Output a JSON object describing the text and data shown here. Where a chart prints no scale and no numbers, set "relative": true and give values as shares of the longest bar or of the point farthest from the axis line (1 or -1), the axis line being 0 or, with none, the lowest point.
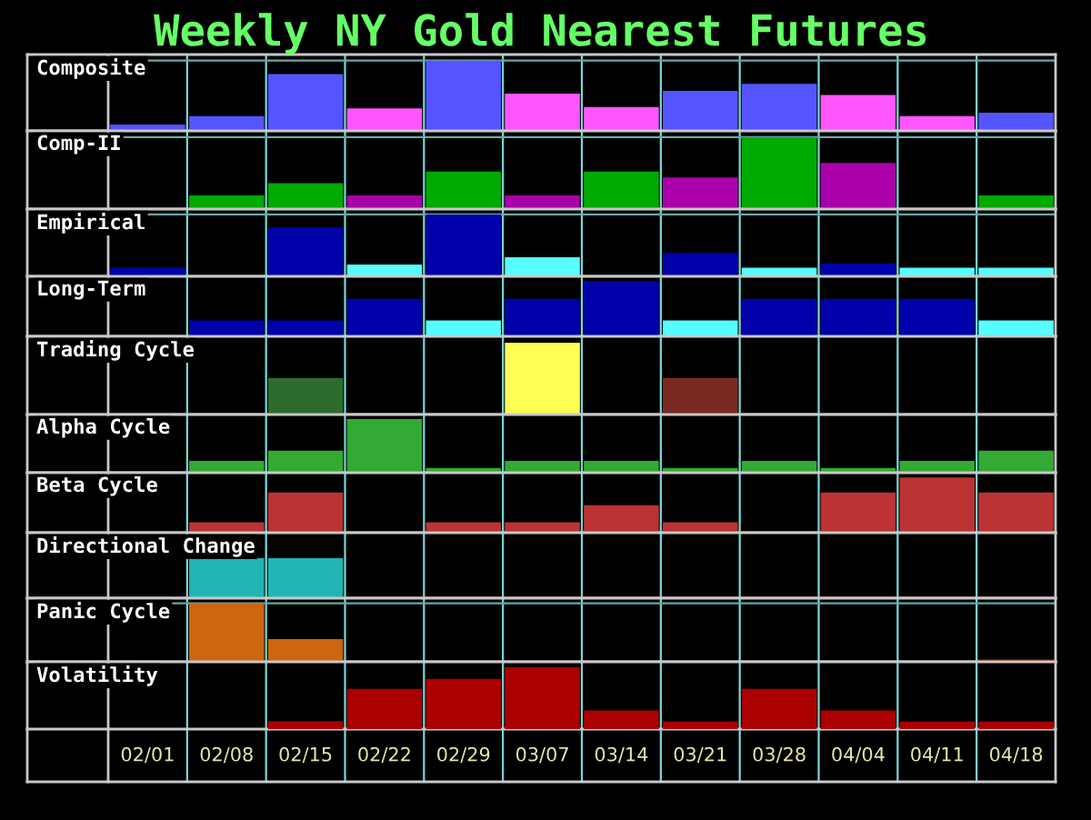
{
  "chart_data": [
    {
      "type": "bar",
      "title": "Weekly NY Gold Nearest Futures",
      "ylabel": "Composite",
      "relative": true,
      "grid": true,
      "tick_labels": false,
      "categories": [
        null,
        null,
        null,
        null,
        null,
        null,
        null,
        null,
        null,
        null,
        null,
        null
      ],
      "values": [
        0.09,
        0.21,
        0.81,
        0.32,
        1,
        0.53,
        0.34,
        0.57,
        0.67,
        0.51,
        0.21,
        0.26
      ],
      "colors": [
        "#5555ff",
        "#5555ff",
        "#5555ff",
        "#ff55ff",
        "#5555ff",
        "#ff55ff",
        "#ff55ff",
        "#5555ff",
        "#5555ff",
        "#ff55ff",
        "#ff55ff",
        "#5555ff"
      ]
    },
    {
      "type": "bar",
      "ylabel": "Comp-II",
      "relative": true,
      "grid": true,
      "tick_labels": false,
      "categories": [
        null,
        null,
        null,
        null,
        null,
        null,
        null,
        null,
        null,
        null,
        null,
        null
      ],
      "values": [
        null,
        0.19,
        0.36,
        0.19,
        0.52,
        0.19,
        0.52,
        0.44,
        1,
        0.64,
        null,
        0.19
      ],
      "colors": [
        null,
        "#00aa00",
        "#00aa00",
        "#aa00aa",
        "#00aa00",
        "#aa00aa",
        "#00aa00",
        "#aa00aa",
        "#00aa00",
        "#aa00aa",
        null,
        "#00aa00"
      ]
    },
    {
      "type": "bar",
      "ylabel": "Empirical",
      "relative": true,
      "grid": true,
      "tick_labels": false,
      "categories": [
        null,
        null,
        null,
        null,
        null,
        null,
        null,
        null,
        null,
        null,
        null,
        null
      ],
      "values": [
        0.14,
        null,
        0.79,
        0.19,
        1,
        0.31,
        null,
        0.38,
        0.14,
        0.21,
        0.14,
        0.14
      ],
      "colors": [
        "#0000aa",
        null,
        "#0000aa",
        "#55ffff",
        "#0000aa",
        "#55ffff",
        null,
        "#0000aa",
        "#55ffff",
        "#0000aa",
        "#55ffff",
        "#55ffff"
      ]
    },
    {
      "type": "bar",
      "ylabel": "Long-Term",
      "relative": true,
      "grid": "x",
      "tick_labels": false,
      "categories": [
        null,
        null,
        null,
        null,
        null,
        null,
        null,
        null,
        null,
        null,
        null,
        null
      ],
      "values": [
        null,
        0.29,
        0.29,
        0.68,
        0.29,
        0.68,
        1,
        0.29,
        0.68,
        0.68,
        0.68,
        0.29
      ],
      "colors": [
        null,
        "#0000aa",
        "#0000aa",
        "#0000aa",
        "#55ffff",
        "#0000aa",
        "#0000aa",
        "#55ffff",
        "#0000aa",
        "#0000aa",
        "#0000aa",
        "#55ffff"
      ]
    },
    {
      "type": "bar",
      "ylabel": "Trading Cycle",
      "relative": true,
      "grid": "x",
      "tick_labels": false,
      "categories": [
        null,
        null,
        null,
        null,
        null,
        null,
        null,
        null,
        null,
        null,
        null,
        null
      ],
      "values": [
        null,
        null,
        0.51,
        null,
        null,
        1,
        null,
        0.51,
        null,
        null,
        null,
        null
      ],
      "colors": [
        null,
        null,
        "#2e6b2e",
        null,
        null,
        "#ffff55",
        null,
        "#7a2a22",
        null,
        null,
        null,
        null
      ]
    },
    {
      "type": "bar",
      "ylabel": "Alpha Cycle",
      "relative": true,
      "grid": "x",
      "tick_labels": false,
      "categories": [
        null,
        null,
        null,
        null,
        null,
        null,
        null,
        null,
        null,
        null,
        null,
        null
      ],
      "values": [
        null,
        0.22,
        0.41,
        1,
        0.09,
        0.22,
        0.22,
        0.09,
        0.22,
        0.09,
        0.22,
        0.41
      ],
      "color": "#33aa33"
    },
    {
      "type": "bar",
      "ylabel": "Beta Cycle",
      "relative": true,
      "grid": "x",
      "tick_labels": false,
      "categories": [
        null,
        null,
        null,
        null,
        null,
        null,
        null,
        null,
        null,
        null,
        null,
        null
      ],
      "values": [
        null,
        0.19,
        0.73,
        null,
        0.19,
        0.19,
        0.5,
        0.19,
        null,
        0.73,
        1,
        0.73
      ],
      "color": "#bb3333"
    },
    {
      "type": "bar",
      "ylabel": "Directional Change",
      "relative": true,
      "grid": "x",
      "tick_labels": false,
      "categories": [
        null,
        null,
        null,
        null,
        null,
        null,
        null,
        null,
        null,
        null,
        null,
        null
      ],
      "values": [
        null,
        1,
        1,
        null,
        null,
        null,
        null,
        null,
        null,
        null,
        null,
        null
      ],
      "color": "#22b4b4"
    },
    {
      "type": "bar",
      "ylabel": "Panic Cycle",
      "relative": true,
      "grid": true,
      "tick_labels": false,
      "categories": [
        null,
        null,
        null,
        null,
        null,
        null,
        null,
        null,
        null,
        null,
        null,
        null
      ],
      "values": [
        null,
        1,
        0.39,
        null,
        null,
        null,
        null,
        null,
        null,
        null,
        null,
        0.04
      ],
      "colors": [
        null,
        "#cc6611",
        "#cc6611",
        null,
        null,
        null,
        null,
        null,
        null,
        null,
        null,
        "#aa2200"
      ]
    },
    {
      "type": "bar",
      "ylabel": "Volatility",
      "relative": true,
      "grid": "x",
      "tick_labels": "x",
      "categories": [
        "02/01",
        "02/08",
        "02/15",
        "02/22",
        "02/29",
        "03/07",
        "03/14",
        "03/21",
        "03/28",
        "04/04",
        "04/11",
        "04/18"
      ],
      "values": [
        null,
        null,
        0.13,
        0.65,
        0.81,
        1,
        0.3,
        0.12,
        0.65,
        0.3,
        0.12,
        0.12
      ],
      "color": "#aa0000"
    }
  ]
}
